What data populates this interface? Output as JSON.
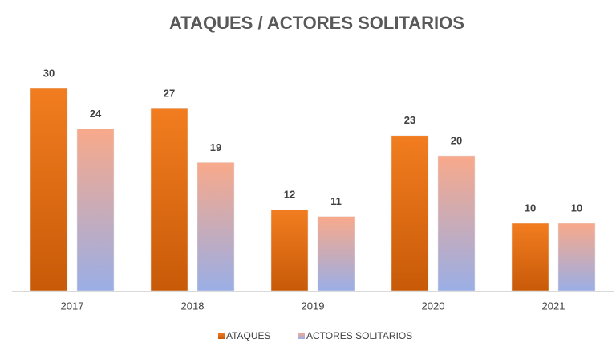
{
  "chart_data": {
    "type": "bar",
    "title": "ATAQUES / ACTORES SOLITARIOS",
    "categories": [
      "2017",
      "2018",
      "2019",
      "2020",
      "2021"
    ],
    "series": [
      {
        "name": "ATAQUES",
        "color": [
          "#f27d20",
          "#c85a08"
        ],
        "values": [
          30,
          27,
          12,
          23,
          10
        ]
      },
      {
        "name": "ACTORES SOLITARIOS",
        "color": [
          "#f8a98a",
          "#9aaee6"
        ],
        "values": [
          24,
          19,
          11,
          20,
          10
        ]
      }
    ]
  }
}
